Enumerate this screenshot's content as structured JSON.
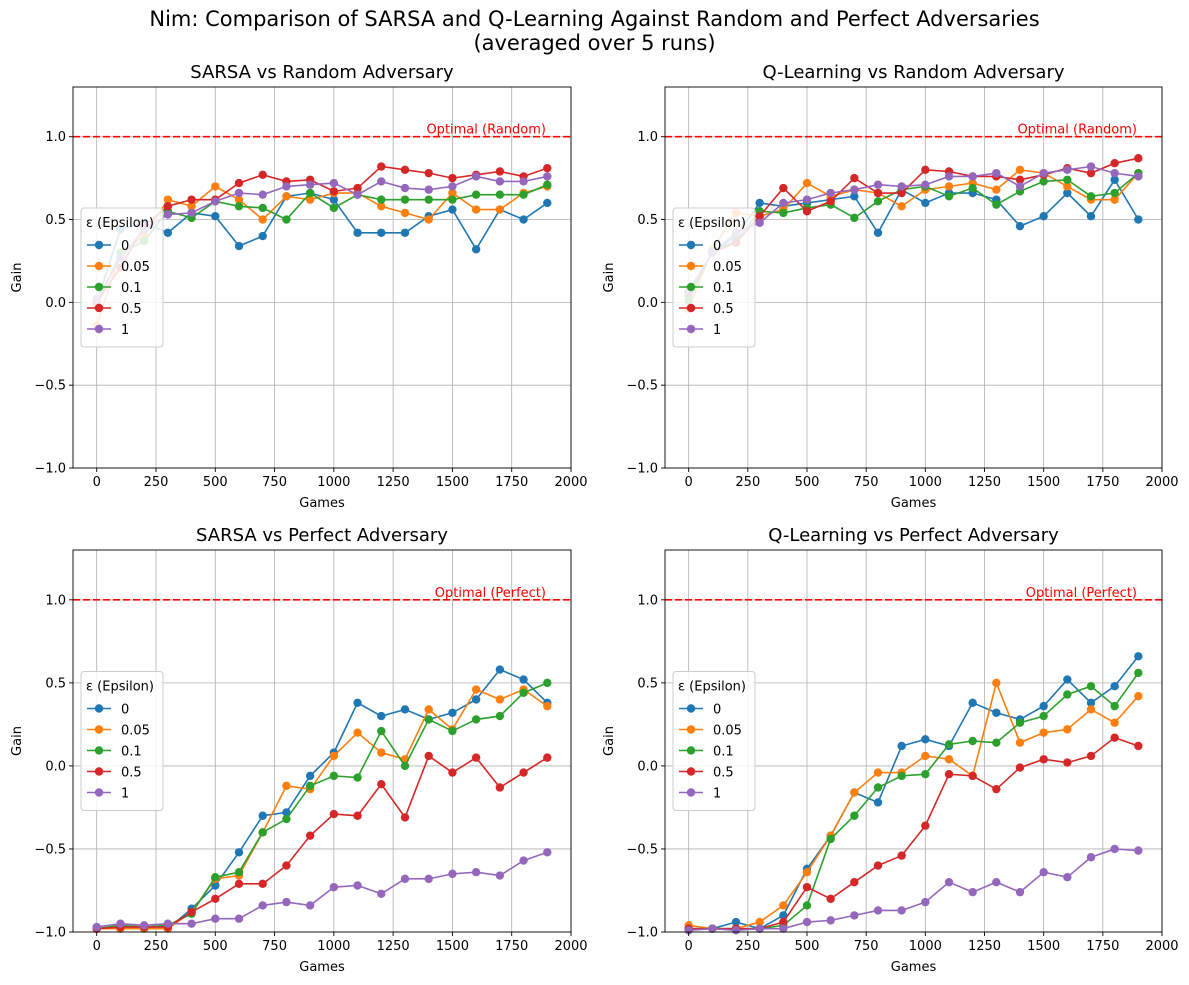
{
  "figure": {
    "title_line1": "Nim: Comparison of SARSA and Q-Learning Against Random and Perfect Adversaries",
    "title_line2": "(averaged over 5 runs)"
  },
  "colors": {
    "eps_0": "#1f77b4",
    "eps_0.05": "#ff7f0e",
    "eps_0.1": "#2ca02c",
    "eps_0.5": "#d62728",
    "eps_1": "#9467bd",
    "optimal_line": "#ff0000",
    "grid": "#b0b0b0"
  },
  "chart_data": [
    {
      "type": "line",
      "title": "SARSA vs Random Adversary",
      "xlabel": "Games",
      "ylabel": "Gain",
      "xlim": [
        -100,
        2000
      ],
      "ylim": [
        -1.0,
        1.3
      ],
      "xticks": [
        0,
        250,
        500,
        750,
        1000,
        1250,
        1500,
        1750,
        2000
      ],
      "yticks": [
        -1.0,
        -0.5,
        0.0,
        0.5,
        1.0
      ],
      "grid": true,
      "legend": {
        "title": "ε (Epsilon)",
        "placement": "center-left"
      },
      "optimal": {
        "y": 1.0,
        "label": "Optimal (Random)"
      },
      "x": [
        0,
        100,
        200,
        300,
        400,
        500,
        600,
        700,
        800,
        900,
        1000,
        1100,
        1200,
        1300,
        1400,
        1500,
        1600,
        1700,
        1800,
        1900
      ],
      "series": [
        {
          "name": "0",
          "values": [
            0.0,
            0.44,
            0.48,
            0.42,
            0.54,
            0.52,
            0.34,
            0.4,
            0.64,
            0.66,
            0.62,
            0.42,
            0.42,
            0.42,
            0.52,
            0.56,
            0.32,
            0.56,
            0.5,
            0.6
          ]
        },
        {
          "name": "0.05",
          "values": [
            -0.14,
            0.3,
            0.4,
            0.62,
            0.58,
            0.7,
            0.62,
            0.5,
            0.64,
            0.62,
            0.66,
            0.66,
            0.58,
            0.54,
            0.5,
            0.66,
            0.56,
            0.56,
            0.66,
            0.7
          ]
        },
        {
          "name": "0.1",
          "values": [
            -0.02,
            0.3,
            0.37,
            0.55,
            0.51,
            0.61,
            0.58,
            0.57,
            0.5,
            0.66,
            0.57,
            0.65,
            0.62,
            0.62,
            0.62,
            0.62,
            0.65,
            0.65,
            0.65,
            0.71
          ]
        },
        {
          "name": "0.5",
          "values": [
            0.0,
            0.21,
            0.46,
            0.58,
            0.62,
            0.62,
            0.72,
            0.77,
            0.73,
            0.74,
            0.67,
            0.69,
            0.82,
            0.8,
            0.78,
            0.75,
            0.77,
            0.79,
            0.76,
            0.81
          ]
        },
        {
          "name": "1",
          "values": [
            0.02,
            0.27,
            0.44,
            0.53,
            0.54,
            0.61,
            0.66,
            0.65,
            0.7,
            0.71,
            0.72,
            0.65,
            0.73,
            0.69,
            0.68,
            0.7,
            0.76,
            0.73,
            0.73,
            0.76
          ]
        }
      ]
    },
    {
      "type": "line",
      "title": "Q-Learning vs Random Adversary",
      "xlabel": "Games",
      "ylabel": "Gain",
      "xlim": [
        -100,
        2000
      ],
      "ylim": [
        -1.0,
        1.3
      ],
      "xticks": [
        0,
        250,
        500,
        750,
        1000,
        1250,
        1500,
        1750,
        2000
      ],
      "yticks": [
        -1.0,
        -0.5,
        0.0,
        0.5,
        1.0
      ],
      "grid": true,
      "legend": {
        "title": "ε (Epsilon)",
        "placement": "center-left"
      },
      "optimal": {
        "y": 1.0,
        "label": "Optimal (Random)"
      },
      "x": [
        0,
        100,
        200,
        300,
        400,
        500,
        600,
        700,
        800,
        900,
        1000,
        1100,
        1200,
        1300,
        1400,
        1500,
        1600,
        1700,
        1800,
        1900
      ],
      "series": [
        {
          "name": "0",
          "values": [
            0.04,
            0.3,
            0.4,
            0.6,
            0.58,
            0.6,
            0.62,
            0.64,
            0.42,
            0.68,
            0.6,
            0.66,
            0.66,
            0.62,
            0.46,
            0.52,
            0.66,
            0.52,
            0.74,
            0.5
          ]
        },
        {
          "name": "0.05",
          "values": [
            -0.04,
            0.32,
            0.54,
            0.52,
            0.56,
            0.72,
            0.64,
            0.68,
            0.66,
            0.58,
            0.68,
            0.7,
            0.72,
            0.68,
            0.8,
            0.78,
            0.7,
            0.62,
            0.62,
            0.78
          ]
        },
        {
          "name": "0.1",
          "values": [
            0.01,
            0.31,
            0.37,
            0.55,
            0.54,
            0.57,
            0.59,
            0.51,
            0.61,
            0.68,
            0.7,
            0.64,
            0.69,
            0.59,
            0.67,
            0.73,
            0.74,
            0.64,
            0.66,
            0.78
          ]
        },
        {
          "name": "0.5",
          "values": [
            0.06,
            0.3,
            0.36,
            0.52,
            0.69,
            0.55,
            0.61,
            0.75,
            0.66,
            0.66,
            0.8,
            0.79,
            0.76,
            0.76,
            0.74,
            0.77,
            0.81,
            0.78,
            0.84,
            0.87
          ]
        },
        {
          "name": "1",
          "values": [
            0.07,
            0.3,
            0.42,
            0.48,
            0.6,
            0.62,
            0.66,
            0.68,
            0.71,
            0.7,
            0.71,
            0.76,
            0.76,
            0.78,
            0.7,
            0.78,
            0.8,
            0.82,
            0.78,
            0.76
          ]
        }
      ]
    },
    {
      "type": "line",
      "title": "SARSA vs Perfect Adversary",
      "xlabel": "Games",
      "ylabel": "Gain",
      "xlim": [
        -100,
        2000
      ],
      "ylim": [
        -1.0,
        1.3
      ],
      "xticks": [
        0,
        250,
        500,
        750,
        1000,
        1250,
        1500,
        1750,
        2000
      ],
      "yticks": [
        -1.0,
        -0.5,
        0.0,
        0.5,
        1.0
      ],
      "grid": true,
      "legend": {
        "title": "ε (Epsilon)",
        "placement": "center-left"
      },
      "optimal": {
        "y": 1.0,
        "label": "Optimal (Perfect)"
      },
      "x": [
        0,
        100,
        200,
        300,
        400,
        500,
        600,
        700,
        800,
        900,
        1000,
        1100,
        1200,
        1300,
        1400,
        1500,
        1600,
        1700,
        1800,
        1900
      ],
      "series": [
        {
          "name": "0",
          "values": [
            -0.98,
            -0.98,
            -0.98,
            -0.98,
            -0.86,
            -0.72,
            -0.52,
            -0.3,
            -0.28,
            -0.06,
            0.08,
            0.38,
            0.3,
            0.34,
            0.28,
            0.32,
            0.4,
            0.58,
            0.52,
            0.38
          ]
        },
        {
          "name": "0.05",
          "values": [
            -0.98,
            -0.98,
            -0.98,
            -0.98,
            -0.88,
            -0.68,
            -0.66,
            -0.4,
            -0.12,
            -0.14,
            0.06,
            0.2,
            0.08,
            0.04,
            0.34,
            0.22,
            0.46,
            0.4,
            0.46,
            0.36
          ]
        },
        {
          "name": "0.1",
          "values": [
            -0.98,
            -0.96,
            -0.97,
            -0.96,
            -0.89,
            -0.67,
            -0.64,
            -0.4,
            -0.32,
            -0.12,
            -0.06,
            -0.07,
            0.21,
            0.0,
            0.28,
            0.21,
            0.28,
            0.3,
            0.44,
            0.5
          ]
        },
        {
          "name": "0.5",
          "values": [
            -0.98,
            -0.97,
            -0.97,
            -0.97,
            -0.88,
            -0.8,
            -0.71,
            -0.71,
            -0.6,
            -0.42,
            -0.29,
            -0.3,
            -0.11,
            -0.31,
            0.06,
            -0.04,
            0.05,
            -0.13,
            -0.04,
            0.05
          ]
        },
        {
          "name": "1",
          "values": [
            -0.97,
            -0.95,
            -0.96,
            -0.95,
            -0.95,
            -0.92,
            -0.92,
            -0.84,
            -0.82,
            -0.84,
            -0.73,
            -0.72,
            -0.77,
            -0.68,
            -0.68,
            -0.65,
            -0.64,
            -0.66,
            -0.57,
            -0.52
          ]
        }
      ]
    },
    {
      "type": "line",
      "title": "Q-Learning vs Perfect Adversary",
      "xlabel": "Games",
      "ylabel": "Gain",
      "xlim": [
        -100,
        2000
      ],
      "ylim": [
        -1.0,
        1.3
      ],
      "xticks": [
        0,
        250,
        500,
        750,
        1000,
        1250,
        1500,
        1750,
        2000
      ],
      "yticks": [
        -1.0,
        -0.5,
        0.0,
        0.5,
        1.0
      ],
      "grid": true,
      "legend": {
        "title": "ε (Epsilon)",
        "placement": "center-left"
      },
      "optimal": {
        "y": 1.0,
        "label": "Optimal (Perfect)"
      },
      "x": [
        0,
        100,
        200,
        300,
        400,
        500,
        600,
        700,
        800,
        900,
        1000,
        1100,
        1200,
        1300,
        1400,
        1500,
        1600,
        1700,
        1800,
        1900
      ],
      "series": [
        {
          "name": "0",
          "values": [
            -0.98,
            -0.98,
            -0.94,
            -0.98,
            -0.9,
            -0.62,
            -0.42,
            -0.16,
            -0.22,
            0.12,
            0.16,
            0.12,
            0.38,
            0.32,
            0.28,
            0.36,
            0.52,
            0.38,
            0.48,
            0.66
          ]
        },
        {
          "name": "0.05",
          "values": [
            -0.96,
            -0.98,
            -0.98,
            -0.94,
            -0.84,
            -0.64,
            -0.42,
            -0.16,
            -0.04,
            -0.04,
            0.06,
            0.04,
            -0.06,
            0.5,
            0.14,
            0.2,
            0.22,
            0.34,
            0.26,
            0.42
          ]
        },
        {
          "name": "0.1",
          "values": [
            -0.98,
            -0.98,
            -0.98,
            -0.98,
            -0.96,
            -0.84,
            -0.44,
            -0.3,
            -0.13,
            -0.06,
            -0.05,
            0.13,
            0.15,
            0.14,
            0.26,
            0.3,
            0.43,
            0.48,
            0.36,
            0.56
          ]
        },
        {
          "name": "0.5",
          "values": [
            -0.98,
            -0.98,
            -0.98,
            -0.98,
            -0.94,
            -0.73,
            -0.8,
            -0.7,
            -0.6,
            -0.54,
            -0.36,
            -0.05,
            -0.06,
            -0.14,
            -0.01,
            0.04,
            0.02,
            0.06,
            0.17,
            0.12
          ]
        },
        {
          "name": "1",
          "values": [
            -0.99,
            -0.98,
            -0.99,
            -0.98,
            -0.98,
            -0.94,
            -0.93,
            -0.9,
            -0.87,
            -0.87,
            -0.82,
            -0.7,
            -0.76,
            -0.7,
            -0.76,
            -0.64,
            -0.67,
            -0.55,
            -0.5,
            -0.51
          ]
        }
      ]
    }
  ]
}
